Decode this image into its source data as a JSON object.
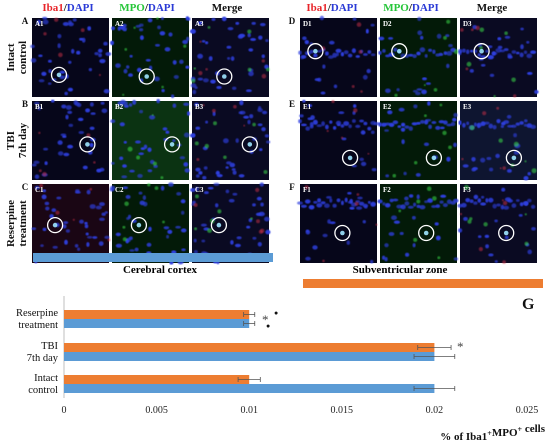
{
  "panels": {
    "left_headers": [
      {
        "parts": [
          {
            "t": "Iba1",
            "c": "red"
          },
          {
            "t": "/",
            "c": "blk"
          },
          {
            "t": "DAPI",
            "c": "blue"
          }
        ]
      },
      {
        "parts": [
          {
            "t": "MPO",
            "c": "green"
          },
          {
            "t": "/",
            "c": "blk"
          },
          {
            "t": "DAPI",
            "c": "blue"
          }
        ]
      },
      {
        "parts": [
          {
            "t": "Merge",
            "c": "blk"
          }
        ]
      }
    ],
    "right_headers": [
      {
        "parts": [
          {
            "t": "Iba1",
            "c": "red"
          },
          {
            "t": "/",
            "c": "blk"
          },
          {
            "t": "DAPI",
            "c": "blue"
          }
        ]
      },
      {
        "parts": [
          {
            "t": "MPO",
            "c": "green"
          },
          {
            "t": "/",
            "c": "blk"
          },
          {
            "t": "DAPI",
            "c": "blue"
          }
        ]
      },
      {
        "parts": [
          {
            "t": "Merge",
            "c": "blk"
          }
        ]
      }
    ],
    "rows": [
      {
        "letter_left": "A",
        "letter_right": "D",
        "label": [
          "Intact",
          "control"
        ]
      },
      {
        "letter_left": "B",
        "letter_right": "E",
        "label": [
          "TBI",
          "7th day"
        ]
      },
      {
        "letter_left": "C",
        "letter_right": "F",
        "label": [
          "Reserpine",
          "treatment"
        ]
      }
    ],
    "left_ids": [
      [
        "A1",
        "A2",
        "A3"
      ],
      [
        "B1",
        "B2",
        "B3"
      ],
      [
        "C1",
        "C2",
        "C3"
      ]
    ],
    "right_ids": [
      [
        "D1",
        "D2",
        "D3"
      ],
      [
        "E1",
        "E2",
        "E3"
      ],
      [
        "F1",
        "F2",
        "F3"
      ]
    ],
    "left_caption": "Cerebral cortex",
    "right_caption": "Subventricular zone",
    "left_bar_color": "#5b9bd5",
    "right_bar_color": "#ed7d31"
  },
  "chart_data": {
    "type": "bar",
    "orientation": "horizontal",
    "panel_label": "G",
    "categories": [
      "Reserpine treatment",
      "TBI 7th day",
      "Intact control"
    ],
    "category_lines": [
      [
        "Reserpine",
        "treatment"
      ],
      [
        "TBI",
        "7th day"
      ],
      [
        "Intact",
        "control"
      ]
    ],
    "series": [
      {
        "region": "subventricular",
        "color": "#ed7d31",
        "values": [
          0.01,
          0.02,
          0.01
        ],
        "errors": [
          0.0003,
          0.0009,
          0.0006
        ]
      },
      {
        "region": "cortex",
        "color": "#5b9bd5",
        "values": [
          0.01,
          0.02,
          0.02
        ],
        "errors": [
          0.0003,
          0.0011,
          0.0011
        ]
      }
    ],
    "xlim": [
      0,
      0.025
    ],
    "ticks": [
      "0",
      "0.005",
      "0.01",
      "0.015",
      "0.02",
      "0.025"
    ],
    "tick_values": [
      0,
      0.005,
      0.01,
      0.015,
      0.02,
      0.025
    ],
    "xlabel_parts": [
      {
        "t": "% of Iba1",
        "sup": false
      },
      {
        "t": "+",
        "sup": true
      },
      {
        "t": "MPO",
        "sup": false
      },
      {
        "t": "+",
        "sup": true
      },
      {
        "t": " cells",
        "sup": false
      }
    ],
    "annotations": [
      {
        "category": 0,
        "text": "*"
      },
      {
        "category": 1,
        "text": "*"
      }
    ],
    "dot_annotations": [
      {
        "category": 0,
        "symbol": "●"
      },
      {
        "category": 0,
        "symbol": "●"
      }
    ]
  }
}
